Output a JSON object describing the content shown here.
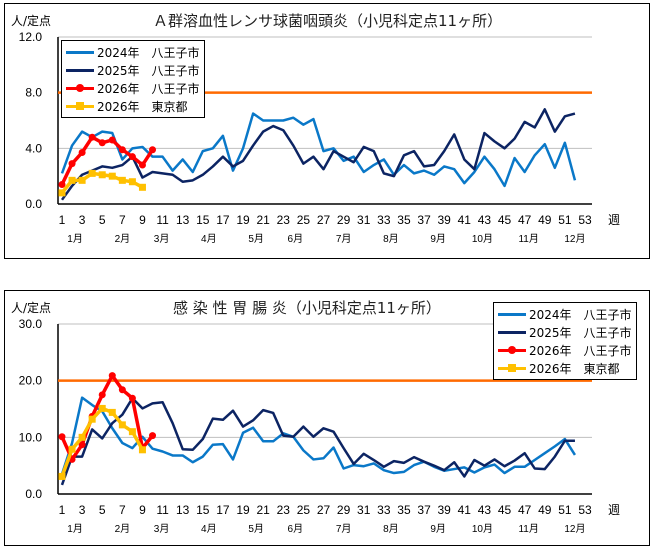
{
  "chart_data": [
    {
      "type": "line",
      "title": "Ａ群溶血性レンサ球菌咽頭炎（小児科定点11ヶ所）",
      "ylabel": "人/定点",
      "xlabel": "週",
      "ylim": [
        0,
        12
      ],
      "yticks": [
        "0.0",
        "4.0",
        "8.0",
        "12.0"
      ],
      "ytick_values": [
        0,
        4,
        8,
        12
      ],
      "xlim": [
        1,
        53
      ],
      "xticks": [
        1,
        3,
        5,
        7,
        9,
        11,
        13,
        15,
        17,
        19,
        21,
        23,
        25,
        27,
        29,
        31,
        33,
        35,
        37,
        39,
        41,
        43,
        45,
        47,
        49,
        51,
        53
      ],
      "months": [
        {
          "label": "1月",
          "week": 2.3
        },
        {
          "label": "2月",
          "week": 7
        },
        {
          "label": "3月",
          "week": 10.9
        },
        {
          "label": "4月",
          "week": 15.6
        },
        {
          "label": "5月",
          "week": 20.3
        },
        {
          "label": "6月",
          "week": 24.2
        },
        {
          "label": "7月",
          "week": 29
        },
        {
          "label": "8月",
          "week": 33.7
        },
        {
          "label": "9月",
          "week": 38.4
        },
        {
          "label": "10月",
          "week": 42.8
        },
        {
          "label": "11月",
          "week": 47.4
        },
        {
          "label": "12月",
          "week": 52
        }
      ],
      "threshold": {
        "value": 8.0,
        "color": "#ff6a00"
      },
      "grid": true,
      "legend": "top-left",
      "series": [
        {
          "name": "2024年　八王子市",
          "color": "#0a78c8",
          "marker": "none",
          "values": [
            2.2,
            4.2,
            5.2,
            4.8,
            5.2,
            5.1,
            3.2,
            4.0,
            4.1,
            3.4,
            3.4,
            2.4,
            3.2,
            2.3,
            3.8,
            4.0,
            4.9,
            2.4,
            4.0,
            6.5,
            6.0,
            6.0,
            6.0,
            6.2,
            5.7,
            6.1,
            3.8,
            4.0,
            3.1,
            3.4,
            2.3,
            2.8,
            3.2,
            2.1,
            2.8,
            2.2,
            2.4,
            2.1,
            2.7,
            2.5,
            1.5,
            2.3,
            3.4,
            2.5,
            1.3,
            3.3,
            2.3,
            3.5,
            4.3,
            2.6,
            4.4,
            1.7
          ]
        },
        {
          "name": "2025年　八王子市",
          "color": "#0c2463",
          "marker": "none",
          "values": [
            0.3,
            1.3,
            2.1,
            2.4,
            2.7,
            2.6,
            2.8,
            3.4,
            1.9,
            2.3,
            2.2,
            2.1,
            1.6,
            1.7,
            2.1,
            2.7,
            3.4,
            2.7,
            3.1,
            4.2,
            5.2,
            5.6,
            5.3,
            4.2,
            2.9,
            3.4,
            2.5,
            3.8,
            3.4,
            3.0,
            4.1,
            3.8,
            2.2,
            2.0,
            3.5,
            3.8,
            2.7,
            2.8,
            3.8,
            5.0,
            3.2,
            2.5,
            5.1,
            4.5,
            4.0,
            4.7,
            5.9,
            5.5,
            6.8,
            5.2,
            6.3,
            6.5
          ]
        },
        {
          "name": "2026年　八王子市",
          "color": "#ff0000",
          "marker": "circle",
          "values": [
            1.4,
            2.9,
            3.7,
            4.8,
            4.4,
            4.6,
            3.9,
            3.4,
            2.8,
            3.9
          ]
        },
        {
          "name": "2026年　東京都",
          "color": "#ffc000",
          "marker": "square",
          "values": [
            0.8,
            1.7,
            1.7,
            2.2,
            2.1,
            2.0,
            1.7,
            1.6,
            1.2
          ]
        }
      ]
    },
    {
      "type": "line",
      "title": "感 染 性 胃 腸 炎（小児科定点11ヶ所）",
      "ylabel": "人/定点",
      "xlabel": "週",
      "ylim": [
        0,
        30
      ],
      "yticks": [
        "0.0",
        "10.0",
        "20.0",
        "30.0"
      ],
      "ytick_values": [
        0,
        10,
        20,
        30
      ],
      "xlim": [
        1,
        53
      ],
      "xticks": [
        1,
        3,
        5,
        7,
        9,
        11,
        13,
        15,
        17,
        19,
        21,
        23,
        25,
        27,
        29,
        31,
        33,
        35,
        37,
        39,
        41,
        43,
        45,
        47,
        49,
        51,
        53
      ],
      "months": [
        {
          "label": "1月",
          "week": 2.3
        },
        {
          "label": "2月",
          "week": 7
        },
        {
          "label": "3月",
          "week": 10.9
        },
        {
          "label": "4月",
          "week": 15.6
        },
        {
          "label": "5月",
          "week": 20.3
        },
        {
          "label": "6月",
          "week": 24.2
        },
        {
          "label": "7月",
          "week": 29
        },
        {
          "label": "8月",
          "week": 33.7
        },
        {
          "label": "9月",
          "week": 38.4
        },
        {
          "label": "10月",
          "week": 42.8
        },
        {
          "label": "11月",
          "week": 47.4
        },
        {
          "label": "12月",
          "week": 52
        }
      ],
      "threshold": {
        "value": 20.0,
        "color": "#ff6a00"
      },
      "grid": true,
      "legend": "top-right",
      "series": [
        {
          "name": "2024年　八王子市",
          "color": "#0a78c8",
          "marker": "none",
          "values": [
            3.5,
            9.0,
            17.0,
            15.7,
            14.6,
            11.6,
            9.0,
            8.1,
            10.1,
            8.0,
            7.5,
            6.8,
            6.8,
            5.6,
            6.6,
            8.7,
            8.8,
            6.1,
            10.8,
            11.7,
            9.3,
            9.3,
            10.7,
            10.1,
            7.7,
            6.1,
            6.3,
            8.2,
            4.5,
            5.1,
            4.9,
            5.4,
            4.2,
            3.7,
            3.9,
            5.1,
            5.7,
            4.8,
            4.1,
            4.4,
            4.7,
            3.8,
            4.7,
            5.2,
            3.7,
            4.8,
            4.8,
            6.0,
            7.2,
            8.4,
            9.7,
            6.9
          ]
        },
        {
          "name": "2025年　八王子市",
          "color": "#0c2463",
          "marker": "none",
          "values": [
            1.6,
            6.6,
            6.6,
            11.4,
            9.8,
            12.5,
            14.0,
            16.9,
            15.1,
            16.0,
            16.2,
            12.5,
            7.9,
            7.8,
            9.7,
            13.3,
            13.1,
            14.7,
            11.9,
            13.0,
            14.8,
            14.3,
            10.3,
            10.1,
            11.9,
            10.1,
            11.6,
            11.0,
            8.1,
            5.3,
            7.1,
            6.0,
            4.8,
            5.8,
            5.5,
            6.5,
            5.7,
            5.0,
            4.2,
            5.6,
            3.1,
            6.0,
            5.0,
            6.1,
            4.9,
            5.9,
            7.2,
            4.5,
            4.4,
            6.6,
            9.4,
            9.4
          ]
        },
        {
          "name": "2026年　八王子市",
          "color": "#ff0000",
          "marker": "circle",
          "values": [
            10.1,
            6.1,
            8.7,
            13.7,
            17.5,
            20.9,
            18.4,
            16.9,
            8.1,
            10.3
          ]
        },
        {
          "name": "2026年　東京都",
          "color": "#ffc000",
          "marker": "square",
          "values": [
            3.1,
            7.9,
            10.0,
            13.2,
            15.1,
            14.4,
            12.2,
            11.0,
            7.8
          ]
        }
      ]
    }
  ]
}
